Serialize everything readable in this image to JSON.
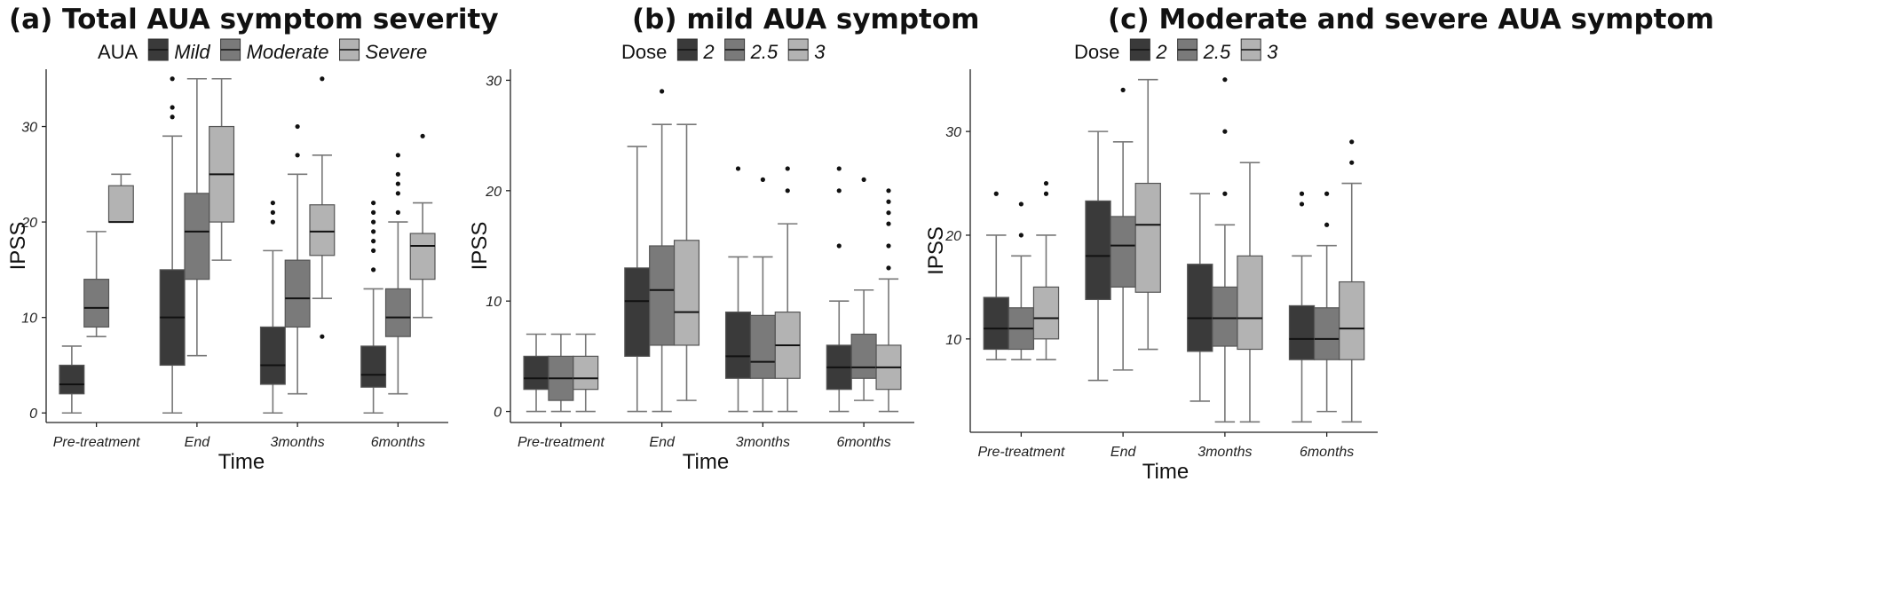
{
  "chart_data": [
    {
      "type": "box",
      "title": "(a) Total AUA symptom severity",
      "xlabel": "Time",
      "ylabel": "IPSS",
      "legend_title": "AUA",
      "legend_position": "top",
      "categories": [
        "Pre-treatment",
        "End",
        "3months",
        "6months"
      ],
      "ylim": [
        -1,
        36
      ],
      "yticks": [
        0,
        10,
        20,
        30
      ],
      "grid": false,
      "series": [
        {
          "name": "Mild",
          "color": "#3a3a3a",
          "boxes": [
            {
              "whislo": 0,
              "q1": 2,
              "med": 3,
              "q3": 5,
              "whishi": 7,
              "fliers": []
            },
            {
              "whislo": 0,
              "q1": 5,
              "med": 10,
              "q3": 15,
              "whishi": 29,
              "fliers": [
                31,
                32,
                35
              ]
            },
            {
              "whislo": 0,
              "q1": 3,
              "med": 5,
              "q3": 9,
              "whishi": 17,
              "fliers": [
                20,
                21,
                22
              ]
            },
            {
              "whislo": 0,
              "q1": 2.7,
              "med": 4,
              "q3": 7,
              "whishi": 13,
              "fliers": [
                15,
                17,
                18,
                19,
                20,
                21,
                22
              ]
            }
          ]
        },
        {
          "name": "Moderate",
          "color": "#7a7a7a",
          "boxes": [
            {
              "whislo": 8,
              "q1": 9,
              "med": 11,
              "q3": 14,
              "whishi": 19,
              "fliers": []
            },
            {
              "whislo": 6,
              "q1": 14,
              "med": 19,
              "q3": 23,
              "whishi": 35,
              "fliers": []
            },
            {
              "whislo": 2,
              "q1": 9,
              "med": 12,
              "q3": 16,
              "whishi": 25,
              "fliers": [
                27,
                30
              ]
            },
            {
              "whislo": 2,
              "q1": 8,
              "med": 10,
              "q3": 13,
              "whishi": 20,
              "fliers": [
                21,
                23,
                24,
                25,
                27
              ]
            }
          ]
        },
        {
          "name": "Severe",
          "color": "#b3b3b3",
          "boxes": [
            {
              "whislo": 20,
              "q1": 20,
              "med": 20,
              "q3": 23.8,
              "whishi": 25,
              "fliers": []
            },
            {
              "whislo": 16,
              "q1": 20,
              "med": 25,
              "q3": 30,
              "whishi": 35,
              "fliers": []
            },
            {
              "whislo": 12,
              "q1": 16.5,
              "med": 19,
              "q3": 21.8,
              "whishi": 27,
              "fliers": [
                8,
                35
              ]
            },
            {
              "whislo": 10,
              "q1": 14,
              "med": 17.5,
              "q3": 18.8,
              "whishi": 22,
              "fliers": [
                29
              ]
            }
          ]
        }
      ]
    },
    {
      "type": "box",
      "title": "(b)  mild AUA symptom",
      "xlabel": "Time",
      "ylabel": "IPSS",
      "legend_title": "Dose",
      "legend_position": "top",
      "categories": [
        "Pre-treatment",
        "End",
        "3months",
        "6months"
      ],
      "ylim": [
        -1,
        31
      ],
      "yticks": [
        0,
        10,
        20,
        30
      ],
      "grid": false,
      "series": [
        {
          "name": "2",
          "color": "#3a3a3a",
          "boxes": [
            {
              "whislo": 0,
              "q1": 2,
              "med": 3,
              "q3": 5,
              "whishi": 7,
              "fliers": []
            },
            {
              "whislo": 0,
              "q1": 5,
              "med": 10,
              "q3": 13,
              "whishi": 24,
              "fliers": []
            },
            {
              "whislo": 0,
              "q1": 3,
              "med": 5,
              "q3": 9,
              "whishi": 14,
              "fliers": [
                22
              ]
            },
            {
              "whislo": 0,
              "q1": 2,
              "med": 4,
              "q3": 6,
              "whishi": 10,
              "fliers": [
                15,
                20,
                22
              ]
            }
          ]
        },
        {
          "name": "2.5",
          "color": "#7a7a7a",
          "boxes": [
            {
              "whislo": 0,
              "q1": 1,
              "med": 3,
              "q3": 5,
              "whishi": 7,
              "fliers": []
            },
            {
              "whislo": 0,
              "q1": 6,
              "med": 11,
              "q3": 15,
              "whishi": 26,
              "fliers": [
                29
              ]
            },
            {
              "whislo": 0,
              "q1": 3,
              "med": 4.5,
              "q3": 8.7,
              "whishi": 14,
              "fliers": [
                21
              ]
            },
            {
              "whislo": 1,
              "q1": 3,
              "med": 4,
              "q3": 7,
              "whishi": 11,
              "fliers": [
                21
              ]
            }
          ]
        },
        {
          "name": "3",
          "color": "#b3b3b3",
          "boxes": [
            {
              "whislo": 0,
              "q1": 2,
              "med": 3,
              "q3": 5,
              "whishi": 7,
              "fliers": []
            },
            {
              "whislo": 1,
              "q1": 6,
              "med": 9,
              "q3": 15.5,
              "whishi": 26,
              "fliers": []
            },
            {
              "whislo": 0,
              "q1": 3,
              "med": 6,
              "q3": 9,
              "whishi": 17,
              "fliers": [
                20,
                22
              ]
            },
            {
              "whislo": 0,
              "q1": 2,
              "med": 4,
              "q3": 6,
              "whishi": 12,
              "fliers": [
                13,
                15,
                17,
                18,
                19,
                20
              ]
            }
          ]
        }
      ]
    },
    {
      "type": "box",
      "title": "(c)  Moderate and severe AUA symptom",
      "xlabel": "Time",
      "ylabel": "IPSS",
      "legend_title": "Dose",
      "legend_position": "top",
      "categories": [
        "Pre-treatment",
        "End",
        "3months",
        "6months"
      ],
      "ylim": [
        1,
        36
      ],
      "yticks": [
        10,
        20,
        30
      ],
      "grid": false,
      "series": [
        {
          "name": "2",
          "color": "#3a3a3a",
          "boxes": [
            {
              "whislo": 8,
              "q1": 9,
              "med": 11,
              "q3": 14,
              "whishi": 20,
              "fliers": [
                24
              ]
            },
            {
              "whislo": 6,
              "q1": 13.8,
              "med": 18,
              "q3": 23.3,
              "whishi": 30,
              "fliers": []
            },
            {
              "whislo": 4,
              "q1": 8.8,
              "med": 12,
              "q3": 17.2,
              "whishi": 24,
              "fliers": []
            },
            {
              "whislo": 2,
              "q1": 8,
              "med": 10,
              "q3": 13.2,
              "whishi": 18,
              "fliers": [
                23,
                24
              ]
            }
          ]
        },
        {
          "name": "2.5",
          "color": "#7a7a7a",
          "boxes": [
            {
              "whislo": 8,
              "q1": 9,
              "med": 11,
              "q3": 13,
              "whishi": 18,
              "fliers": [
                20,
                23
              ]
            },
            {
              "whislo": 7,
              "q1": 15,
              "med": 19,
              "q3": 21.8,
              "whishi": 29,
              "fliers": [
                34
              ]
            },
            {
              "whislo": 2,
              "q1": 9.3,
              "med": 12,
              "q3": 15,
              "whishi": 21,
              "fliers": [
                24,
                30,
                35
              ]
            },
            {
              "whislo": 3,
              "q1": 8,
              "med": 10,
              "q3": 13,
              "whishi": 19,
              "fliers": [
                21,
                24
              ]
            }
          ]
        },
        {
          "name": "3",
          "color": "#b3b3b3",
          "boxes": [
            {
              "whislo": 8,
              "q1": 10,
              "med": 12,
              "q3": 15,
              "whishi": 20,
              "fliers": [
                24,
                25
              ]
            },
            {
              "whislo": 9,
              "q1": 14.5,
              "med": 21,
              "q3": 25,
              "whishi": 35,
              "fliers": []
            },
            {
              "whislo": 2,
              "q1": 9,
              "med": 12,
              "q3": 18,
              "whishi": 27,
              "fliers": []
            },
            {
              "whislo": 2,
              "q1": 8,
              "med": 11,
              "q3": 15.5,
              "whishi": 25,
              "fliers": [
                27,
                29
              ]
            }
          ]
        }
      ]
    }
  ]
}
